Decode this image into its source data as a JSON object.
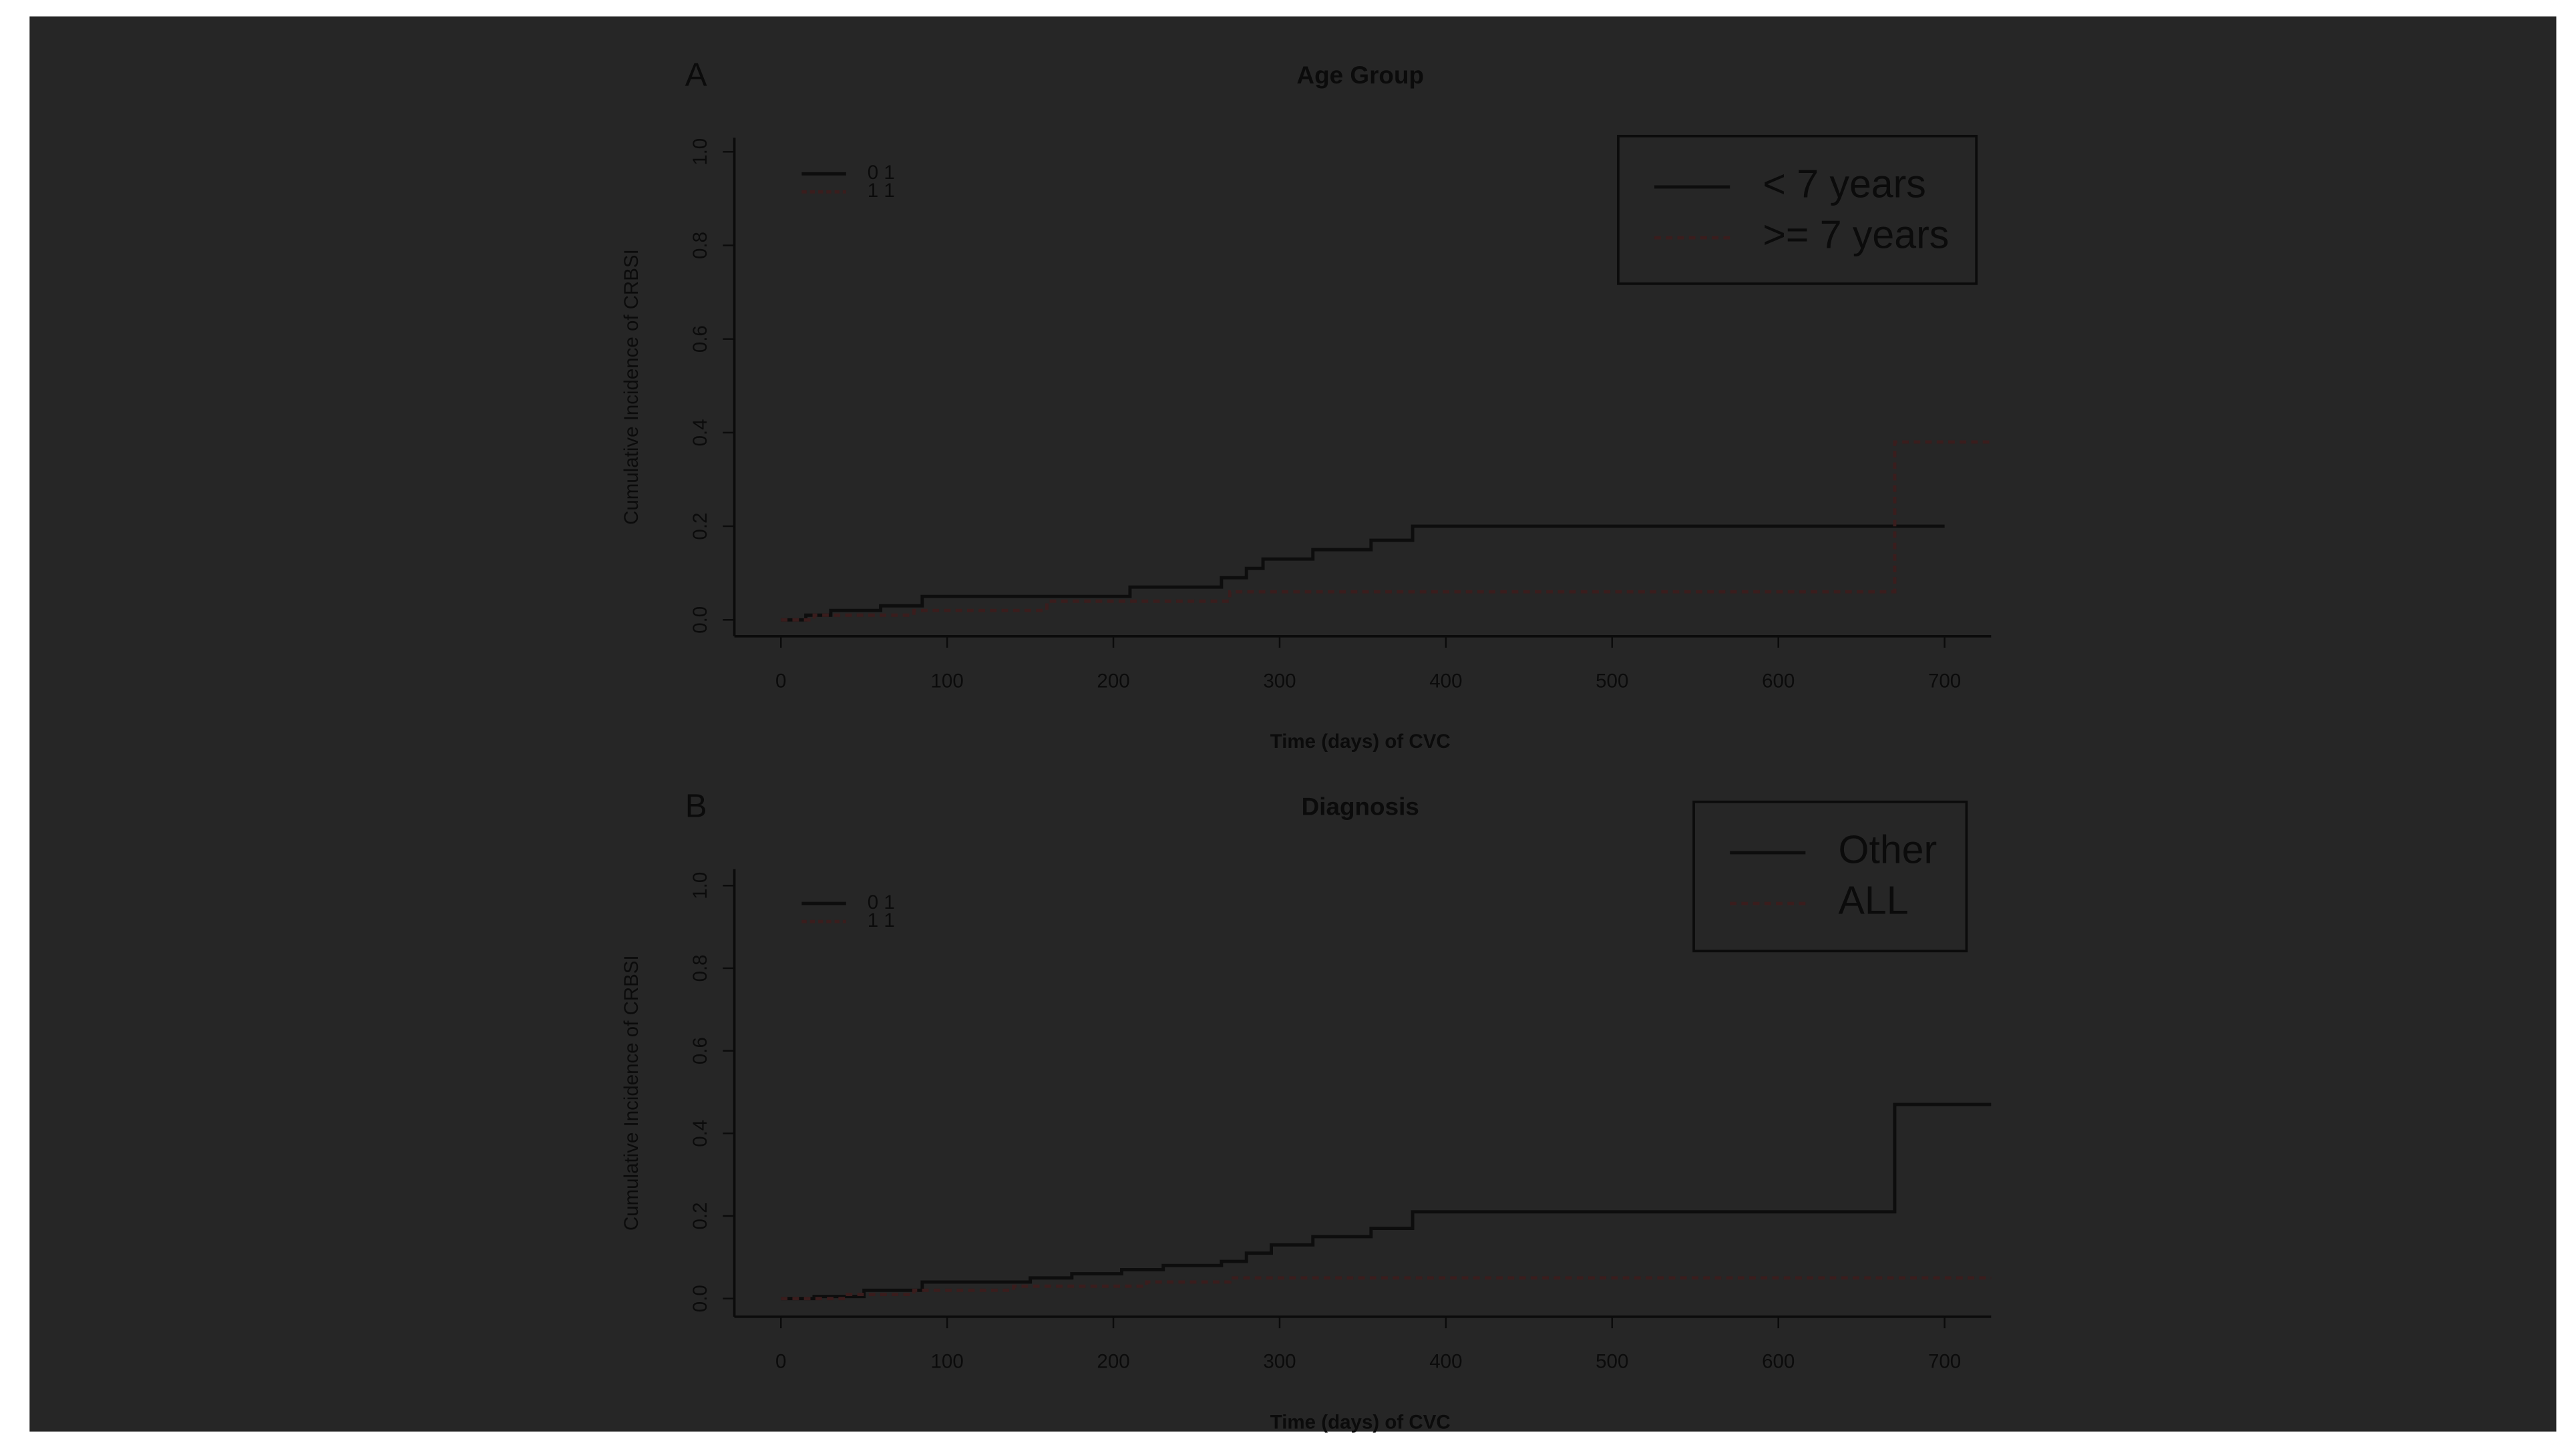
{
  "chart_data": [
    {
      "type": "line",
      "panel": "A",
      "title": "Age Group",
      "x_label": "Time (days) of CVC",
      "y_label": "Cumulative Incidence of CRBSI",
      "xlim": [
        -28,
        728
      ],
      "xticks": [
        0,
        100,
        200,
        300,
        400,
        500,
        600,
        700
      ],
      "ylim": [
        -0.035,
        1.03
      ],
      "yticks": [
        {
          "value": 0,
          "label": "0.0"
        },
        0.2,
        0.4,
        0.6,
        0.8,
        {
          "value": 1,
          "label": "1.0"
        }
      ],
      "inset_legend": [
        "0 1",
        "1 1"
      ],
      "series": [
        {
          "name": "< 7 years",
          "color": "#0d0d0d",
          "dashed": false,
          "x": [
            0,
            15,
            15,
            30,
            30,
            60,
            60,
            85,
            85,
            210,
            210,
            265,
            265,
            280,
            280,
            290,
            290,
            320,
            320,
            355,
            355,
            380,
            380,
            700
          ],
          "values": [
            0,
            0,
            0.01,
            0.01,
            0.02,
            0.02,
            0.03,
            0.03,
            0.05,
            0.05,
            0.07,
            0.07,
            0.09,
            0.09,
            0.11,
            0.11,
            0.13,
            0.13,
            0.15,
            0.15,
            0.17,
            0.17,
            0.2,
            0.2
          ]
        },
        {
          "name": ">= 7 years",
          "color": "#3a1d1d",
          "dashed": true,
          "x": [
            0,
            20,
            20,
            80,
            80,
            160,
            160,
            270,
            270,
            670,
            670,
            728
          ],
          "values": [
            0,
            0,
            0.01,
            0.01,
            0.02,
            0.02,
            0.04,
            0.04,
            0.06,
            0.06,
            0.38,
            0.38
          ]
        }
      ]
    },
    {
      "type": "line",
      "panel": "B",
      "title": "Diagnosis",
      "x_label": "Time (days) of CVC",
      "y_label": "Cumulative Incidence of CRBSI",
      "xlim": [
        -28,
        728
      ],
      "xticks": [
        0,
        100,
        200,
        300,
        400,
        500,
        600,
        700
      ],
      "ylim": [
        -0.044,
        1.04
      ],
      "yticks": [
        {
          "value": 0,
          "label": "0.0"
        },
        0.2,
        0.4,
        0.6,
        0.8,
        {
          "value": 1,
          "label": "1.0"
        }
      ],
      "inset_legend": [
        "0 1",
        "1 1"
      ],
      "series": [
        {
          "name": "Other",
          "color": "#0d0d0d",
          "dashed": false,
          "x": [
            0,
            20,
            20,
            50,
            50,
            85,
            85,
            150,
            150,
            175,
            175,
            205,
            205,
            230,
            230,
            265,
            265,
            280,
            280,
            295,
            295,
            320,
            320,
            355,
            355,
            380,
            380,
            670,
            670,
            728
          ],
          "values": [
            0,
            0,
            0.005,
            0.005,
            0.02,
            0.02,
            0.04,
            0.04,
            0.05,
            0.05,
            0.06,
            0.06,
            0.07,
            0.07,
            0.08,
            0.08,
            0.09,
            0.09,
            0.11,
            0.11,
            0.13,
            0.13,
            0.15,
            0.15,
            0.17,
            0.17,
            0.21,
            0.21,
            0.47,
            0.47
          ]
        },
        {
          "name": "ALL",
          "color": "#3a1d1d",
          "dashed": true,
          "x": [
            0,
            40,
            40,
            80,
            80,
            140,
            140,
            220,
            220,
            270,
            270,
            728
          ],
          "values": [
            0,
            0,
            0.01,
            0.01,
            0.02,
            0.02,
            0.03,
            0.03,
            0.04,
            0.04,
            0.05,
            0.05
          ]
        }
      ]
    }
  ]
}
